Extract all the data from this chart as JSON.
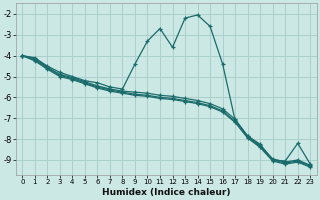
{
  "xlabel": "Humidex (Indice chaleur)",
  "xlim": [
    -0.5,
    23.5
  ],
  "ylim": [
    -9.7,
    -1.5
  ],
  "yticks": [
    -9,
    -8,
    -7,
    -6,
    -5,
    -4,
    -3,
    -2
  ],
  "xticks": [
    0,
    1,
    2,
    3,
    4,
    5,
    6,
    7,
    8,
    9,
    10,
    11,
    12,
    13,
    14,
    15,
    16,
    17,
    18,
    19,
    20,
    21,
    22,
    23
  ],
  "bg_color": "#cce8e4",
  "grid_color": "#aacfcb",
  "line_color": "#1a6b6b",
  "line1_x": [
    0,
    1,
    2,
    3,
    4,
    5,
    6,
    7,
    8,
    9,
    10,
    11,
    12,
    13,
    14,
    15,
    16,
    17,
    18,
    19,
    20,
    21,
    22,
    23
  ],
  "line1_y": [
    -4.0,
    -4.1,
    -4.5,
    -4.8,
    -5.0,
    -5.2,
    -5.3,
    -5.5,
    -5.6,
    -4.4,
    -3.3,
    -2.7,
    -3.6,
    -2.2,
    -2.05,
    -2.6,
    -4.4,
    -7.1,
    -7.85,
    -8.25,
    -9.0,
    -9.05,
    -8.2,
    -9.2
  ],
  "line2_x": [
    0,
    1,
    2,
    3,
    4,
    5,
    6,
    7,
    8,
    9,
    10,
    11,
    12,
    13,
    14,
    15,
    16,
    17,
    18,
    19,
    20,
    21,
    22,
    23
  ],
  "line2_y": [
    -4.0,
    -4.15,
    -4.55,
    -4.9,
    -5.05,
    -5.25,
    -5.45,
    -5.6,
    -5.7,
    -5.75,
    -5.8,
    -5.9,
    -5.95,
    -6.05,
    -6.15,
    -6.3,
    -6.55,
    -7.05,
    -7.85,
    -8.3,
    -8.95,
    -9.1,
    -9.0,
    -9.25
  ],
  "line3_x": [
    0,
    1,
    2,
    3,
    4,
    5,
    6,
    7,
    8,
    9,
    10,
    11,
    12,
    13,
    14,
    15,
    16,
    17,
    18,
    19,
    20,
    21,
    22,
    23
  ],
  "line3_y": [
    -4.0,
    -4.2,
    -4.6,
    -4.95,
    -5.1,
    -5.3,
    -5.5,
    -5.65,
    -5.75,
    -5.85,
    -5.9,
    -6.0,
    -6.05,
    -6.15,
    -6.25,
    -6.4,
    -6.65,
    -7.15,
    -7.9,
    -8.35,
    -9.0,
    -9.15,
    -9.05,
    -9.3
  ],
  "line4_x": [
    0,
    1,
    2,
    3,
    4,
    5,
    6,
    7,
    8,
    9,
    10,
    11,
    12,
    13,
    14,
    15,
    16,
    17,
    18,
    19,
    20,
    21,
    22,
    23
  ],
  "line4_y": [
    -4.0,
    -4.25,
    -4.65,
    -5.0,
    -5.15,
    -5.35,
    -5.55,
    -5.7,
    -5.8,
    -5.9,
    -5.95,
    -6.05,
    -6.1,
    -6.2,
    -6.3,
    -6.45,
    -6.7,
    -7.2,
    -7.95,
    -8.4,
    -9.05,
    -9.2,
    -9.1,
    -9.35
  ]
}
